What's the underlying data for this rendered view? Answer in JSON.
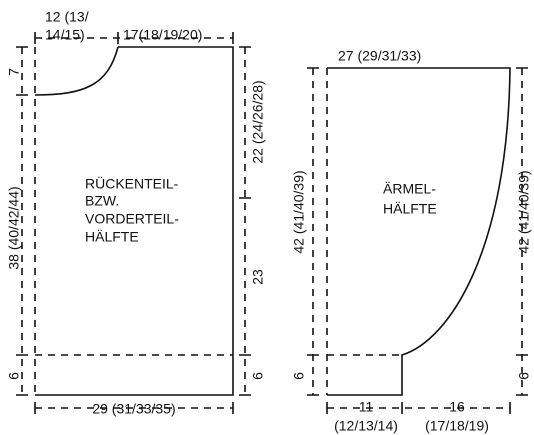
{
  "back_piece": {
    "label": [
      "RÜCKENTEIL-",
      "BZW.",
      "VORDERTEIL-",
      "HÄLFTE"
    ],
    "neck_width": [
      "12 (13/",
      "14/15)"
    ],
    "shoulder_width": "17(18/19/20)",
    "neck_depth": "7",
    "left_height": "38 (40/42/44)",
    "hem": "6",
    "armhole_height": "22 (24/26/28)",
    "side_height": "23",
    "hem_right": "6",
    "width": "29 (31/33/35)"
  },
  "sleeve": {
    "label": [
      "ÄRMEL-",
      "HÄLFTE"
    ],
    "top_width": "27 (29/31/33)",
    "left_height": "42 (41/40/39)",
    "right_height": "42 (41/40/39)",
    "cuff_left": "6",
    "cuff_right": "6",
    "cuff_width": [
      "11",
      "(12/13/14)"
    ],
    "increase_width": [
      "16",
      "(17/18/19)"
    ]
  }
}
